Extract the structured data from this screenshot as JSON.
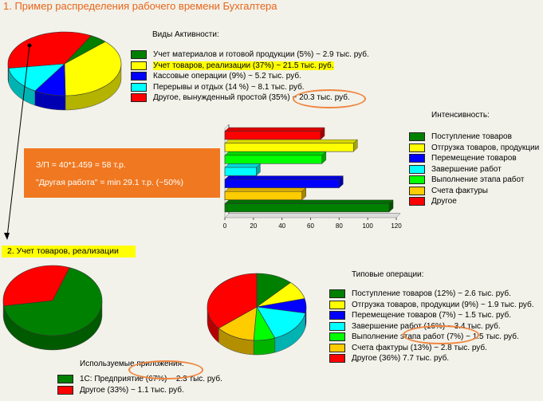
{
  "title": "1. Пример распределения рабочего времени Бухгалтера",
  "activities": {
    "header": "Виды Активности:",
    "items": [
      {
        "label": "Учет материалов и готовой продукции (5%) ~  2.9 тыс. руб.",
        "color": "#008000",
        "pct": 5,
        "highlight": false
      },
      {
        "label": "Учет товаров, реализации (37%) ~ 21.5 тыс. руб.",
        "color": "#ffff00",
        "pct": 37,
        "highlight": true
      },
      {
        "label": "Кассовые операции (9%) ~  5.2 тыс. руб.",
        "color": "#0000ff",
        "pct": 9,
        "highlight": false
      },
      {
        "label": "Перерывы и отдых (14 %) ~  8.1 тыс. руб.",
        "color": "#00ffff",
        "pct": 14,
        "highlight": false
      },
      {
        "label": "Другое, вынужденный простой (35%) ~ 20.3 тыс. руб.",
        "color": "#ff0000",
        "pct": 35,
        "highlight": false
      }
    ]
  },
  "salary_box": {
    "line1": "З/П = 40*1.459 = 58 т.р.",
    "line2": "\"Другая работа\" = min 29.1 т.р. (~50%)"
  },
  "intensity": {
    "header": "Интенсивность:",
    "legend": [
      {
        "label": "Поступление товаров",
        "color": "#008000"
      },
      {
        "label": "Отгрузка товаров, продукции",
        "color": "#ffff00"
      },
      {
        "label": "Перемещение товаров",
        "color": "#0000ff"
      },
      {
        "label": "Завершение работ",
        "color": "#00ffff"
      },
      {
        "label": "Выполнение этапа работ",
        "color": "#00ff00"
      },
      {
        "label": "Счета фактуры",
        "color": "#ffcc00"
      },
      {
        "label": "Другое",
        "color": "#ff0000"
      }
    ]
  },
  "section2": {
    "title": "2. Учет товаров, реализации"
  },
  "apps": {
    "header": "Используемые приложения:",
    "items": [
      {
        "label": "1С: Предприятие (67%) ~ 2.3 тыс. руб.",
        "color": "#008000",
        "pct": 67
      },
      {
        "label": "Другое (33%) ~ 1.1 тыс. руб.",
        "color": "#ff0000",
        "pct": 33
      }
    ]
  },
  "ops": {
    "header": "Типовые операции:",
    "items": [
      {
        "label": "Поступление товаров (12%) ~  2.6 тыс. руб.",
        "color": "#008000",
        "pct": 12
      },
      {
        "label": "Отгрузка товаров, продукции (9%) ~  1.9 тыс. руб.",
        "color": "#ffff00",
        "pct": 9
      },
      {
        "label": "Перемещение товаров (7%) ~ 1.5 тыс. руб.",
        "color": "#0000ff",
        "pct": 7
      },
      {
        "label": "Завершение работ (16%) ~  3.4 тыс. руб.",
        "color": "#00ffff",
        "pct": 16
      },
      {
        "label": "Выполнение этапа работ (7%) ~  1.5 тыс. руб.",
        "color": "#00ff00",
        "pct": 7
      },
      {
        "label": "Счета фактуры (13%) ~ 2.8 тыс. руб.",
        "color": "#ffcc00",
        "pct": 13
      },
      {
        "label": "Другое (36%)       7.7 тыс. руб.",
        "color": "#ff0000",
        "pct": 36
      }
    ]
  },
  "chart_data": [
    {
      "type": "pie",
      "title": "Виды Активности:",
      "categories": [
        "Учет материалов и готовой продукции",
        "Учет товаров, реализации",
        "Кассовые операции",
        "Перерывы и отдых",
        "Другое, вынужденный простой"
      ],
      "values": [
        5,
        37,
        9,
        14,
        35
      ]
    },
    {
      "type": "bar",
      "title": "Интенсивность:",
      "orientation": "horizontal",
      "categories": [
        "Другое",
        "Отгрузка товаров, продукции",
        "Выполнение этапа работ",
        "Завершение работ",
        "Перемещение товаров",
        "Счета фактуры",
        "Поступление товаров"
      ],
      "colors": [
        "#ff0000",
        "#ffff00",
        "#00ff00",
        "#00ffff",
        "#0000ff",
        "#ffcc00",
        "#008000"
      ],
      "values": [
        67,
        90,
        68,
        22,
        80,
        54,
        115
      ],
      "xlim": [
        0,
        120
      ],
      "xticks": [
        "0",
        "20",
        "40",
        "60",
        "80",
        "100",
        "120"
      ],
      "grid": false,
      "legend": "right"
    },
    {
      "type": "pie",
      "title": "Используемые приложения:",
      "categories": [
        "1С: Предприятие",
        "Другое"
      ],
      "values": [
        67,
        33
      ]
    },
    {
      "type": "pie",
      "title": "Типовые операции:",
      "categories": [
        "Поступление товаров",
        "Отгрузка товаров, продукции",
        "Перемещение товаров",
        "Завершение работ",
        "Выполнение этапа работ",
        "Счета фактуры",
        "Другое"
      ],
      "values": [
        12,
        9,
        7,
        16,
        7,
        13,
        36
      ]
    }
  ]
}
